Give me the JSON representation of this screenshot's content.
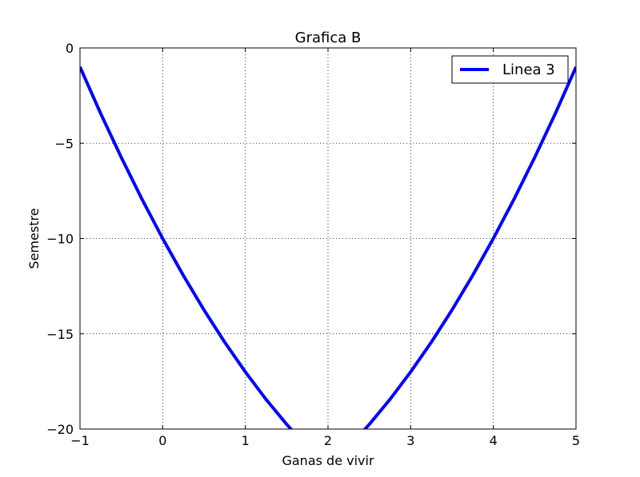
{
  "chart_data": {
    "type": "line",
    "title": "Grafica B",
    "xlabel": "Ganas de vivir",
    "ylabel": "Semestre",
    "xlim": [
      -1,
      5
    ],
    "ylim": [
      -20,
      0
    ],
    "xticks": [
      -1,
      0,
      1,
      2,
      3,
      4,
      5
    ],
    "yticks": [
      0,
      -5,
      -10,
      -15,
      -20
    ],
    "xtick_labels": [
      "−1",
      "0",
      "1",
      "2",
      "3",
      "4",
      "5"
    ],
    "ytick_labels": [
      "0",
      "−5",
      "−10",
      "−15",
      "−20"
    ],
    "grid": true,
    "legend": {
      "position": "upper-right",
      "entries": [
        "Linea 3"
      ]
    },
    "series": [
      {
        "name": "Linea 3",
        "color": "#0000ff",
        "x": [
          -1.0,
          -0.75,
          -0.5,
          -0.25,
          0.0,
          0.25,
          0.5,
          0.75,
          1.0,
          1.25,
          1.5,
          1.75,
          2.0,
          2.25,
          2.5,
          2.75,
          3.0,
          3.25,
          3.5,
          3.75,
          4.0,
          4.25,
          4.5,
          4.75,
          5.0
        ],
        "y": [
          -1.0,
          -3.44,
          -5.75,
          -7.94,
          -10.0,
          -11.94,
          -13.75,
          -15.44,
          -17.0,
          -18.44,
          -19.75,
          -20.94,
          -22.0,
          -20.94,
          -19.75,
          -18.44,
          -17.0,
          -15.44,
          -13.75,
          -11.94,
          -10.0,
          -7.94,
          -5.75,
          -3.44,
          -1.0
        ]
      }
    ]
  },
  "colors": {
    "line": "#0000ff",
    "grid": "#000000",
    "frame": "#000000",
    "background": "#ffffff"
  }
}
